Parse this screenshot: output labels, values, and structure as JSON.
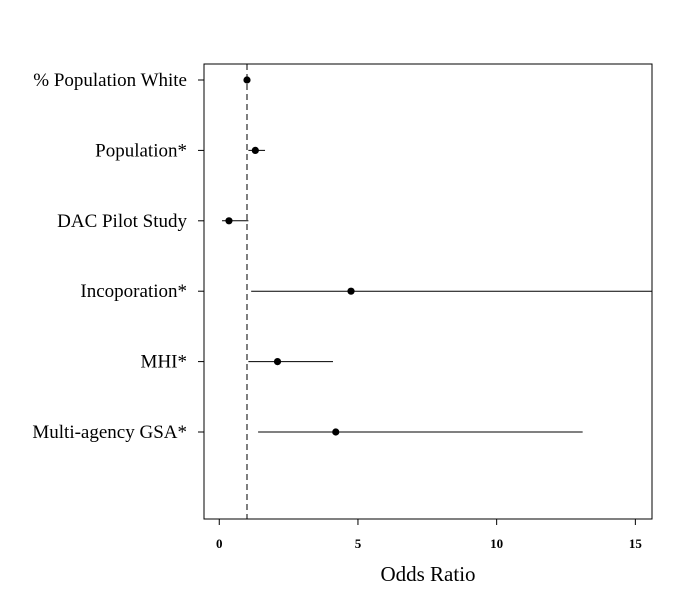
{
  "chart_data": {
    "type": "forest",
    "title": "",
    "xlabel": "Odds Ratio",
    "ylabel": "",
    "xlim": [
      -0.55,
      15.6
    ],
    "xticks": [
      0,
      5,
      10,
      15
    ],
    "reference_line": 1,
    "grid": false,
    "legend": "none",
    "rows": [
      {
        "label": "% Population White",
        "estimate": 1.0,
        "lower": 0.97,
        "upper": 1.03
      },
      {
        "label": "Population*",
        "estimate": 1.3,
        "lower": 1.05,
        "upper": 1.65
      },
      {
        "label": "DAC Pilot Study",
        "estimate": 0.35,
        "lower": 0.1,
        "upper": 1.05
      },
      {
        "label": "Incoporation*",
        "estimate": 4.75,
        "lower": 1.15,
        "upper": 15.6
      },
      {
        "label": "MHI*",
        "estimate": 2.1,
        "lower": 1.05,
        "upper": 4.1
      },
      {
        "label": "Multi-agency GSA*",
        "estimate": 4.2,
        "lower": 1.4,
        "upper": 13.1
      }
    ]
  }
}
